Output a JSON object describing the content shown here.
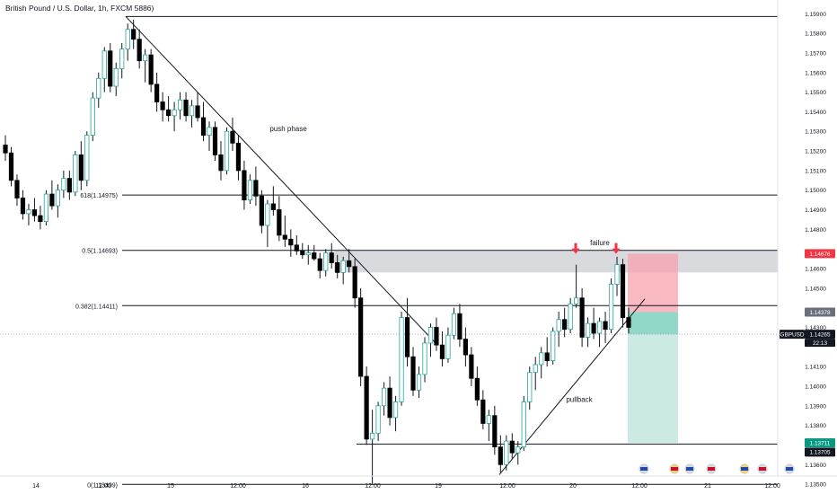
{
  "header": {
    "title": "British Pound / U.S. Dollar, 1h, FXCM",
    "open_value": "5886)"
  },
  "colors": {
    "up_fill": "#ffffff",
    "up_border": "#26a69a",
    "down_fill": "#000000",
    "stop_zone": "#f7a1ac",
    "target_zone": "#c5e8e1",
    "entry_zone": "#7fd1bf",
    "resistance_zone": "#b9bcc2",
    "badge_red": "#f23645",
    "badge_dark": "#131722",
    "badge_grey": "#6b6f7a"
  },
  "chart_data": {
    "type": "candlestick",
    "symbol": "GBPUSD",
    "interval": "1h",
    "price_ticks": [
      "1.15900",
      "1.15800",
      "1.15700",
      "1.15600",
      "1.15500",
      "1.15400",
      "1.15300",
      "1.15200",
      "1.15100",
      "1.15000",
      "1.14900",
      "1.14800",
      "1.14600",
      "1.14500",
      "1.14300",
      "1.14100",
      "1.14000",
      "1.13900",
      "1.13800",
      "1.13600",
      "1.13500"
    ],
    "ylim": [
      1.1345,
      1.1597
    ],
    "time_labels": [
      "14",
      "12:00",
      "15",
      "12:00",
      "16",
      "12:00",
      "19",
      "12:00",
      "20",
      "12:00",
      "21",
      "12:00"
    ],
    "fib_levels": [
      {
        "label": "618(1.14975)",
        "price": 1.14975
      },
      {
        "label": "0.5(1.14693)",
        "price": 1.14693
      },
      {
        "label": "0.382(1.14411)",
        "price": 1.14411
      },
      {
        "label": "0(1.13499)",
        "price": 1.13499
      }
    ],
    "top_level_price": 1.15886,
    "support_level_price": 1.13705,
    "resistance_zone": [
      1.1458,
      1.1469
    ],
    "annotations": [
      {
        "text": "push phase",
        "price": 1.153
      },
      {
        "text": "failure",
        "price": 1.1472
      },
      {
        "text": "pullback",
        "price": 1.1392
      }
    ],
    "position": {
      "stop": 1.14676,
      "entry": 1.14378,
      "target": 1.13711
    },
    "price_badges": [
      {
        "text": "1.14676",
        "price": 1.14676,
        "style": "red"
      },
      {
        "text": "1.14378",
        "price": 1.14378,
        "style": "grey"
      },
      {
        "text": "GBPUSD",
        "price": 1.14265,
        "style": "dark"
      },
      {
        "text": "1.14265",
        "price": 1.14265,
        "style": "dark"
      },
      {
        "text": "22:13",
        "price": 1.14265,
        "style": "dark"
      },
      {
        "text": "1.13711",
        "price": 1.13711,
        "style": "green"
      },
      {
        "text": "1.13705",
        "price": 1.13705,
        "style": "dark"
      }
    ],
    "current_price": 1.14265,
    "candles": [
      [
        1.1523,
        1.1528,
        1.1515,
        1.1519
      ],
      [
        1.1519,
        1.1522,
        1.1502,
        1.1505
      ],
      [
        1.1505,
        1.1508,
        1.1492,
        1.1496
      ],
      [
        1.1496,
        1.15,
        1.1485,
        1.1488
      ],
      [
        1.1488,
        1.1493,
        1.1482,
        1.149
      ],
      [
        1.149,
        1.1496,
        1.1484,
        1.1487
      ],
      [
        1.1487,
        1.1492,
        1.148,
        1.1484
      ],
      [
        1.1484,
        1.15,
        1.1482,
        1.1498
      ],
      [
        1.1498,
        1.1505,
        1.149,
        1.1492
      ],
      [
        1.1492,
        1.1503,
        1.1486,
        1.15
      ],
      [
        1.15,
        1.151,
        1.1496,
        1.1506
      ],
      [
        1.1506,
        1.151,
        1.1495,
        1.1499
      ],
      [
        1.1499,
        1.152,
        1.1497,
        1.1518
      ],
      [
        1.1518,
        1.1525,
        1.15,
        1.1505
      ],
      [
        1.1505,
        1.153,
        1.1502,
        1.1528
      ],
      [
        1.1528,
        1.155,
        1.1525,
        1.1547
      ],
      [
        1.1547,
        1.156,
        1.1542,
        1.1557
      ],
      [
        1.1557,
        1.1573,
        1.155,
        1.1571
      ],
      [
        1.1571,
        1.1575,
        1.155,
        1.1553
      ],
      [
        1.1553,
        1.1565,
        1.1548,
        1.1562
      ],
      [
        1.1562,
        1.1575,
        1.1557,
        1.1572
      ],
      [
        1.1572,
        1.1585,
        1.1566,
        1.1582
      ],
      [
        1.1582,
        1.1587,
        1.1572,
        1.1577
      ],
      [
        1.1577,
        1.1582,
        1.1562,
        1.1566
      ],
      [
        1.1566,
        1.1572,
        1.1555,
        1.1569
      ],
      [
        1.1569,
        1.1572,
        1.155,
        1.1554
      ],
      [
        1.1554,
        1.156,
        1.154,
        1.1545
      ],
      [
        1.1545,
        1.155,
        1.1535,
        1.1541
      ],
      [
        1.1541,
        1.1548,
        1.1535,
        1.1538
      ],
      [
        1.1538,
        1.1545,
        1.153,
        1.1541
      ],
      [
        1.1541,
        1.155,
        1.1536,
        1.1546
      ],
      [
        1.1546,
        1.155,
        1.1535,
        1.1538
      ],
      [
        1.1538,
        1.1546,
        1.1532,
        1.1543
      ],
      [
        1.1543,
        1.155,
        1.1535,
        1.1537
      ],
      [
        1.1537,
        1.1545,
        1.1525,
        1.1528
      ],
      [
        1.1528,
        1.1535,
        1.152,
        1.1532
      ],
      [
        1.1532,
        1.1535,
        1.1515,
        1.1518
      ],
      [
        1.1518,
        1.1525,
        1.1505,
        1.151
      ],
      [
        1.151,
        1.1532,
        1.1508,
        1.153
      ],
      [
        1.153,
        1.1537,
        1.152,
        1.1524
      ],
      [
        1.1524,
        1.1528,
        1.1505,
        1.151
      ],
      [
        1.151,
        1.1515,
        1.149,
        1.1495
      ],
      [
        1.1495,
        1.1508,
        1.1493,
        1.1505
      ],
      [
        1.1505,
        1.1512,
        1.1492,
        1.1497
      ],
      [
        1.1497,
        1.15,
        1.1478,
        1.1482
      ],
      [
        1.1482,
        1.1495,
        1.1471,
        1.1493
      ],
      [
        1.1493,
        1.1502,
        1.1487,
        1.149
      ],
      [
        1.149,
        1.1497,
        1.1474,
        1.1477
      ],
      [
        1.1477,
        1.1487,
        1.1471,
        1.1475
      ],
      [
        1.1475,
        1.148,
        1.1466,
        1.1472
      ],
      [
        1.1472,
        1.1477,
        1.1467,
        1.1469
      ],
      [
        1.1469,
        1.1473,
        1.1465,
        1.1467
      ],
      [
        1.1467,
        1.1472,
        1.1462,
        1.1468
      ],
      [
        1.1468,
        1.1472,
        1.1464,
        1.1465
      ],
      [
        1.1465,
        1.1468,
        1.1455,
        1.1459
      ],
      [
        1.1459,
        1.147,
        1.1456,
        1.1468
      ],
      [
        1.1468,
        1.1473,
        1.146,
        1.1463
      ],
      [
        1.1463,
        1.1467,
        1.1455,
        1.1458
      ],
      [
        1.1458,
        1.1466,
        1.1452,
        1.1464
      ],
      [
        1.1464,
        1.147,
        1.1458,
        1.1461
      ],
      [
        1.1461,
        1.1465,
        1.144,
        1.1445
      ],
      [
        1.1445,
        1.145,
        1.14,
        1.1405
      ],
      [
        1.1405,
        1.141,
        1.137,
        1.1373
      ],
      [
        1.1373,
        1.1388,
        1.135,
        1.1376
      ],
      [
        1.1376,
        1.1392,
        1.1372,
        1.139
      ],
      [
        1.139,
        1.1402,
        1.1385,
        1.1399
      ],
      [
        1.1399,
        1.1405,
        1.138,
        1.1384
      ],
      [
        1.1384,
        1.1395,
        1.1377,
        1.1392
      ],
      [
        1.1392,
        1.1438,
        1.139,
        1.1435
      ],
      [
        1.1435,
        1.1445,
        1.141,
        1.1415
      ],
      [
        1.1415,
        1.142,
        1.1395,
        1.1398
      ],
      [
        1.1398,
        1.141,
        1.1394,
        1.1406
      ],
      [
        1.1406,
        1.1425,
        1.1402,
        1.1422
      ],
      [
        1.1422,
        1.1432,
        1.1415,
        1.143
      ],
      [
        1.143,
        1.1435,
        1.1418,
        1.1421
      ],
      [
        1.1421,
        1.1428,
        1.141,
        1.1414
      ],
      [
        1.1414,
        1.143,
        1.1412,
        1.1426
      ],
      [
        1.1426,
        1.144,
        1.1424,
        1.1437
      ],
      [
        1.1437,
        1.1442,
        1.142,
        1.1424
      ],
      [
        1.1424,
        1.143,
        1.141,
        1.1416
      ],
      [
        1.1416,
        1.142,
        1.14,
        1.1404
      ],
      [
        1.1404,
        1.141,
        1.139,
        1.1393
      ],
      [
        1.1393,
        1.1398,
        1.1378,
        1.1381
      ],
      [
        1.1381,
        1.1388,
        1.1372,
        1.1385
      ],
      [
        1.1385,
        1.139,
        1.1365,
        1.1369
      ],
      [
        1.1369,
        1.1375,
        1.1356,
        1.136
      ],
      [
        1.136,
        1.1375,
        1.1357,
        1.1372
      ],
      [
        1.1372,
        1.1376,
        1.1363,
        1.1366
      ],
      [
        1.1366,
        1.1372,
        1.136,
        1.1369
      ],
      [
        1.1369,
        1.1395,
        1.1367,
        1.1392
      ],
      [
        1.1392,
        1.141,
        1.1388,
        1.1407
      ],
      [
        1.1407,
        1.1415,
        1.1398,
        1.1411
      ],
      [
        1.1411,
        1.142,
        1.1404,
        1.1417
      ],
      [
        1.1417,
        1.1425,
        1.141,
        1.1413
      ],
      [
        1.1413,
        1.143,
        1.1411,
        1.1428
      ],
      [
        1.1428,
        1.1438,
        1.142,
        1.1434
      ],
      [
        1.1434,
        1.144,
        1.1425,
        1.1429
      ],
      [
        1.1429,
        1.1445,
        1.1427,
        1.1442
      ],
      [
        1.1442,
        1.1462,
        1.144,
        1.1445
      ],
      [
        1.1445,
        1.145,
        1.142,
        1.1425
      ],
      [
        1.1425,
        1.1435,
        1.142,
        1.1432
      ],
      [
        1.1432,
        1.144,
        1.1424,
        1.1427
      ],
      [
        1.1427,
        1.1435,
        1.142,
        1.1433
      ],
      [
        1.1433,
        1.1438,
        1.1422,
        1.1429
      ],
      [
        1.1429,
        1.1455,
        1.1427,
        1.1452
      ],
      [
        1.1452,
        1.1466,
        1.1446,
        1.1462
      ],
      [
        1.1462,
        1.1465,
        1.143,
        1.1435
      ],
      [
        1.1435,
        1.144,
        1.1427,
        1.143
      ]
    ]
  }
}
